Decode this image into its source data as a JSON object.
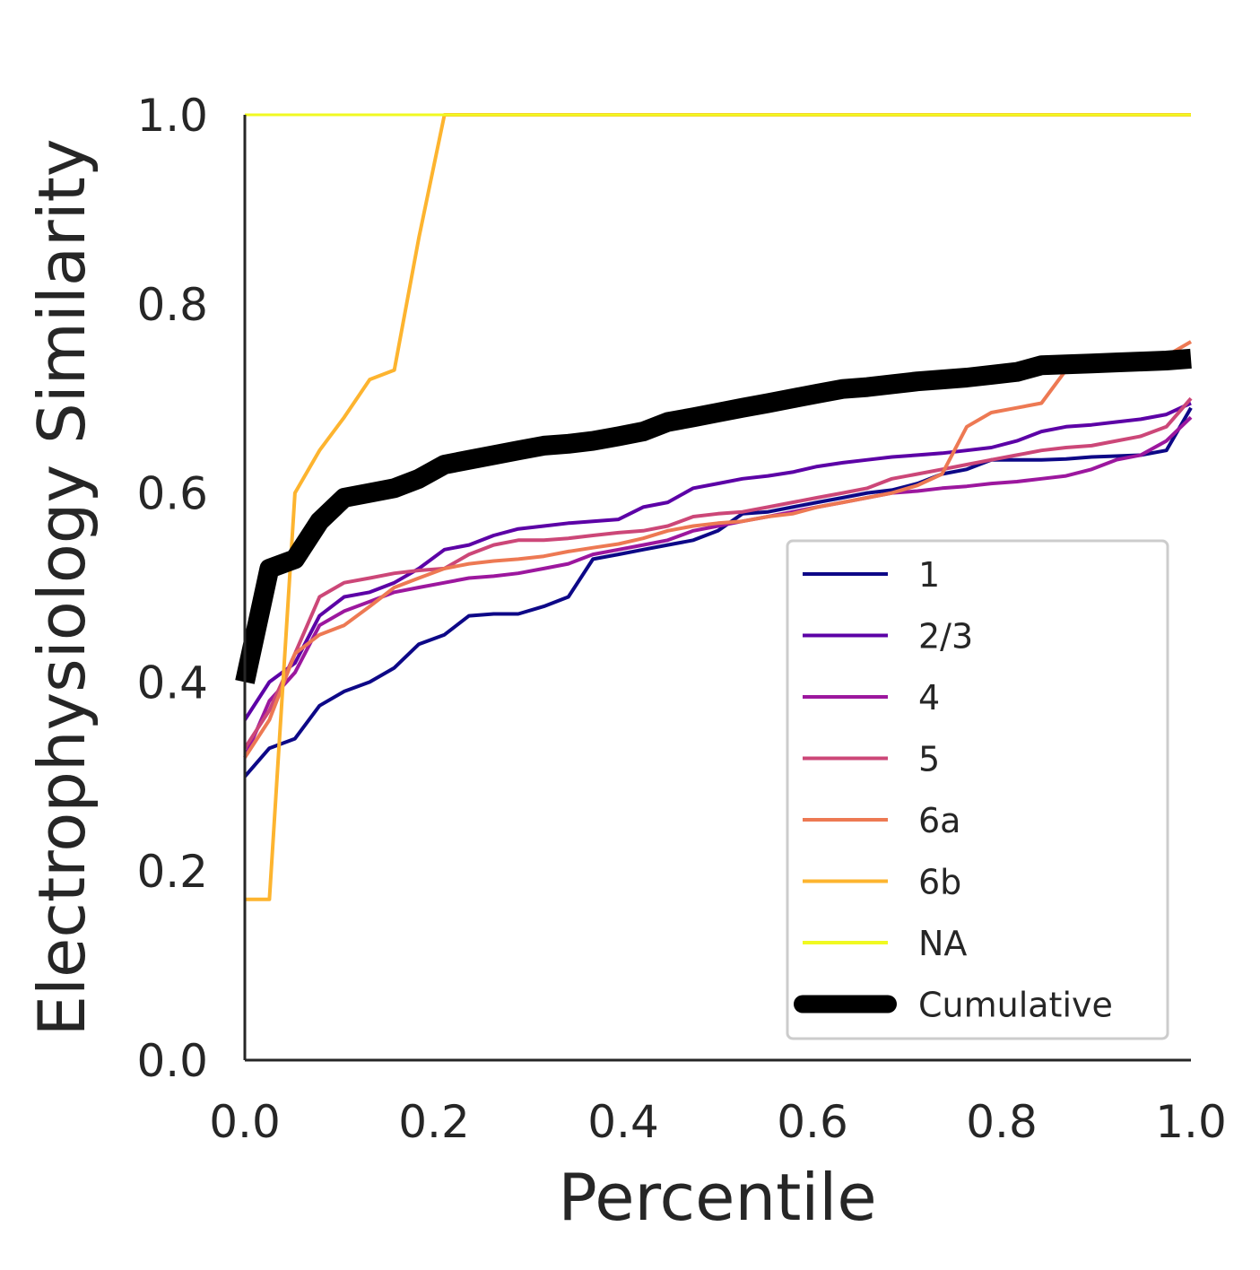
{
  "chart_data": {
    "type": "line",
    "title": "",
    "xlabel": "Percentile",
    "ylabel": "Electrophysiology Similarity",
    "xlim": [
      0,
      1
    ],
    "ylim": [
      0,
      1
    ],
    "xticks": [
      "0.0",
      "0.2",
      "0.4",
      "0.6",
      "0.8",
      "1.0"
    ],
    "yticks": [
      "0.0",
      "0.2",
      "0.4",
      "0.6",
      "0.8",
      "1.0"
    ],
    "grid": false,
    "legend_position": "lower-right",
    "series": [
      {
        "name": "1",
        "color": "#0d0887",
        "width": 4,
        "x": [
          0.0,
          0.026,
          0.053,
          0.079,
          0.105,
          0.132,
          0.158,
          0.184,
          0.211,
          0.237,
          0.263,
          0.289,
          0.316,
          0.342,
          0.368,
          0.395,
          0.421,
          0.447,
          0.474,
          0.5,
          0.526,
          0.553,
          0.579,
          0.605,
          0.632,
          0.658,
          0.684,
          0.711,
          0.737,
          0.763,
          0.789,
          0.816,
          0.842,
          0.868,
          0.895,
          0.921,
          0.947,
          0.974,
          1.0
        ],
        "y": [
          0.3,
          0.33,
          0.34,
          0.375,
          0.39,
          0.4,
          0.415,
          0.44,
          0.45,
          0.47,
          0.472,
          0.472,
          0.48,
          0.49,
          0.53,
          0.535,
          0.54,
          0.545,
          0.55,
          0.56,
          0.578,
          0.58,
          0.585,
          0.59,
          0.595,
          0.6,
          0.603,
          0.61,
          0.62,
          0.625,
          0.635,
          0.635,
          0.635,
          0.636,
          0.638,
          0.639,
          0.64,
          0.645,
          0.69
        ]
      },
      {
        "name": "2/3",
        "color": "#5c01a6",
        "width": 4,
        "x": [
          0.0,
          0.026,
          0.053,
          0.079,
          0.105,
          0.132,
          0.158,
          0.184,
          0.211,
          0.237,
          0.263,
          0.289,
          0.316,
          0.342,
          0.368,
          0.395,
          0.421,
          0.447,
          0.474,
          0.5,
          0.526,
          0.553,
          0.579,
          0.605,
          0.632,
          0.658,
          0.684,
          0.711,
          0.737,
          0.763,
          0.789,
          0.816,
          0.842,
          0.868,
          0.895,
          0.921,
          0.947,
          0.974,
          1.0
        ],
        "y": [
          0.36,
          0.4,
          0.42,
          0.47,
          0.49,
          0.495,
          0.505,
          0.52,
          0.54,
          0.545,
          0.555,
          0.562,
          0.565,
          0.568,
          0.57,
          0.572,
          0.585,
          0.59,
          0.605,
          0.61,
          0.615,
          0.618,
          0.622,
          0.628,
          0.632,
          0.635,
          0.638,
          0.64,
          0.642,
          0.645,
          0.648,
          0.655,
          0.665,
          0.67,
          0.672,
          0.675,
          0.678,
          0.683,
          0.695
        ]
      },
      {
        "name": "4",
        "color": "#9c179e",
        "width": 4,
        "x": [
          0.0,
          0.026,
          0.053,
          0.079,
          0.105,
          0.132,
          0.158,
          0.184,
          0.211,
          0.237,
          0.263,
          0.289,
          0.316,
          0.342,
          0.368,
          0.395,
          0.421,
          0.447,
          0.474,
          0.5,
          0.526,
          0.553,
          0.579,
          0.605,
          0.632,
          0.658,
          0.684,
          0.711,
          0.737,
          0.763,
          0.789,
          0.816,
          0.842,
          0.868,
          0.895,
          0.921,
          0.947,
          0.974,
          1.0
        ],
        "y": [
          0.32,
          0.38,
          0.41,
          0.46,
          0.475,
          0.485,
          0.495,
          0.5,
          0.505,
          0.51,
          0.512,
          0.515,
          0.52,
          0.525,
          0.535,
          0.54,
          0.545,
          0.55,
          0.56,
          0.565,
          0.57,
          0.575,
          0.58,
          0.585,
          0.59,
          0.595,
          0.6,
          0.602,
          0.605,
          0.607,
          0.61,
          0.612,
          0.615,
          0.618,
          0.625,
          0.635,
          0.64,
          0.655,
          0.68
        ]
      },
      {
        "name": "5",
        "color": "#cc4778",
        "width": 4,
        "x": [
          0.0,
          0.026,
          0.053,
          0.079,
          0.105,
          0.132,
          0.158,
          0.184,
          0.211,
          0.237,
          0.263,
          0.289,
          0.316,
          0.342,
          0.368,
          0.395,
          0.421,
          0.447,
          0.474,
          0.5,
          0.526,
          0.553,
          0.579,
          0.605,
          0.632,
          0.658,
          0.684,
          0.711,
          0.737,
          0.763,
          0.789,
          0.816,
          0.842,
          0.868,
          0.895,
          0.921,
          0.947,
          0.974,
          1.0
        ],
        "y": [
          0.33,
          0.37,
          0.43,
          0.49,
          0.505,
          0.51,
          0.515,
          0.518,
          0.52,
          0.535,
          0.545,
          0.55,
          0.55,
          0.552,
          0.555,
          0.558,
          0.56,
          0.565,
          0.575,
          0.578,
          0.58,
          0.585,
          0.59,
          0.595,
          0.6,
          0.605,
          0.615,
          0.62,
          0.625,
          0.63,
          0.635,
          0.64,
          0.645,
          0.648,
          0.65,
          0.655,
          0.66,
          0.67,
          0.7
        ]
      },
      {
        "name": "6a",
        "color": "#ed7953",
        "width": 4,
        "x": [
          0.0,
          0.026,
          0.053,
          0.079,
          0.105,
          0.132,
          0.158,
          0.184,
          0.211,
          0.237,
          0.263,
          0.289,
          0.316,
          0.342,
          0.368,
          0.395,
          0.421,
          0.447,
          0.474,
          0.5,
          0.526,
          0.553,
          0.579,
          0.605,
          0.632,
          0.658,
          0.684,
          0.711,
          0.737,
          0.763,
          0.789,
          0.816,
          0.842,
          0.868,
          0.895,
          0.921,
          0.947,
          0.974,
          1.0
        ],
        "y": [
          0.32,
          0.36,
          0.43,
          0.45,
          0.46,
          0.48,
          0.5,
          0.51,
          0.52,
          0.525,
          0.528,
          0.53,
          0.533,
          0.538,
          0.542,
          0.546,
          0.552,
          0.56,
          0.565,
          0.568,
          0.57,
          0.575,
          0.578,
          0.585,
          0.59,
          0.595,
          0.6,
          0.608,
          0.62,
          0.67,
          0.685,
          0.69,
          0.695,
          0.73,
          0.735,
          0.74,
          0.742,
          0.745,
          0.76
        ]
      },
      {
        "name": "6b",
        "color": "#fdb42f",
        "width": 4,
        "x": [
          0.0,
          0.026,
          0.053,
          0.079,
          0.105,
          0.132,
          0.158,
          0.184,
          0.211,
          1.0
        ],
        "y": [
          0.17,
          0.17,
          0.6,
          0.645,
          0.68,
          0.72,
          0.73,
          0.87,
          1.0,
          1.0
        ]
      },
      {
        "name": "NA",
        "color": "#f0f921",
        "width": 3,
        "x": [
          0.0,
          1.0
        ],
        "y": [
          1.0,
          1.0
        ]
      },
      {
        "name": "Cumulative",
        "color": "#000000",
        "width": 22,
        "x": [
          0.0,
          0.026,
          0.053,
          0.079,
          0.105,
          0.132,
          0.158,
          0.184,
          0.211,
          0.237,
          0.263,
          0.289,
          0.316,
          0.342,
          0.368,
          0.395,
          0.421,
          0.447,
          0.474,
          0.5,
          0.526,
          0.553,
          0.579,
          0.605,
          0.632,
          0.658,
          0.684,
          0.711,
          0.737,
          0.763,
          0.789,
          0.816,
          0.842,
          0.868,
          0.895,
          0.921,
          0.947,
          0.974,
          1.0
        ],
        "y": [
          0.4,
          0.52,
          0.53,
          0.57,
          0.595,
          0.6,
          0.605,
          0.615,
          0.63,
          0.635,
          0.64,
          0.645,
          0.65,
          0.652,
          0.655,
          0.66,
          0.665,
          0.675,
          0.68,
          0.685,
          0.69,
          0.695,
          0.7,
          0.705,
          0.71,
          0.712,
          0.715,
          0.718,
          0.72,
          0.722,
          0.725,
          0.728,
          0.735,
          0.736,
          0.737,
          0.738,
          0.739,
          0.74,
          0.742
        ]
      }
    ]
  }
}
